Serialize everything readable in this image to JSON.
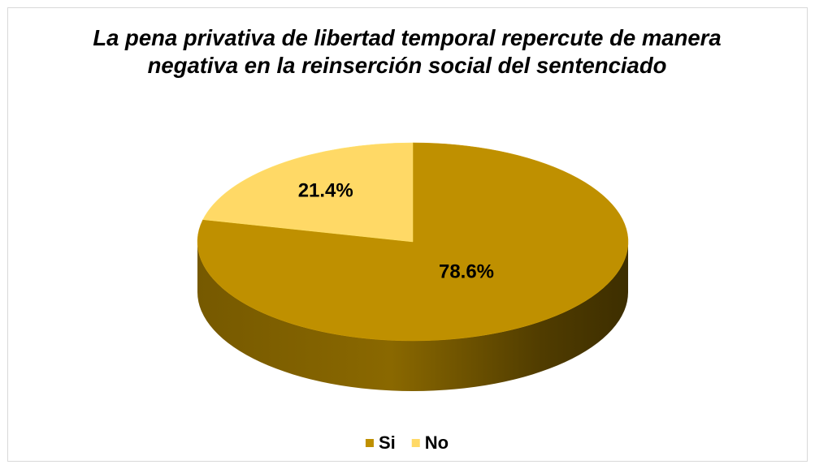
{
  "chart_data": {
    "type": "pie",
    "title": "La pena privativa de libertad temporal repercute de manera negativa en la reinserción social del sentenciado",
    "categories": [
      "Si",
      "No"
    ],
    "values": [
      78.6,
      21.4
    ],
    "value_labels": [
      "78.6%",
      "21.4%"
    ],
    "colors": [
      "#bf9000",
      "#ffd966"
    ],
    "legend": "bottom"
  }
}
